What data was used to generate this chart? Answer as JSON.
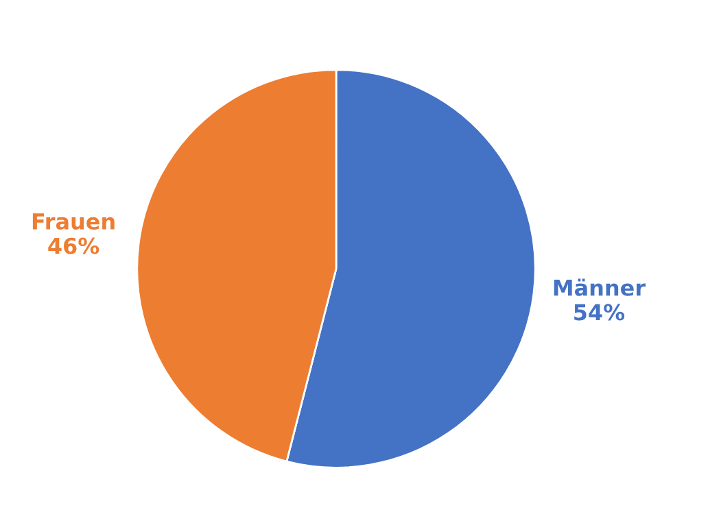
{
  "chart_data": {
    "type": "pie",
    "categories": [
      "Männer",
      "Frauen"
    ],
    "values": [
      54,
      46
    ],
    "value_labels": [
      "54%",
      "46%"
    ],
    "colors": [
      "#4472c4",
      "#ed7d31"
    ],
    "legend": false
  }
}
